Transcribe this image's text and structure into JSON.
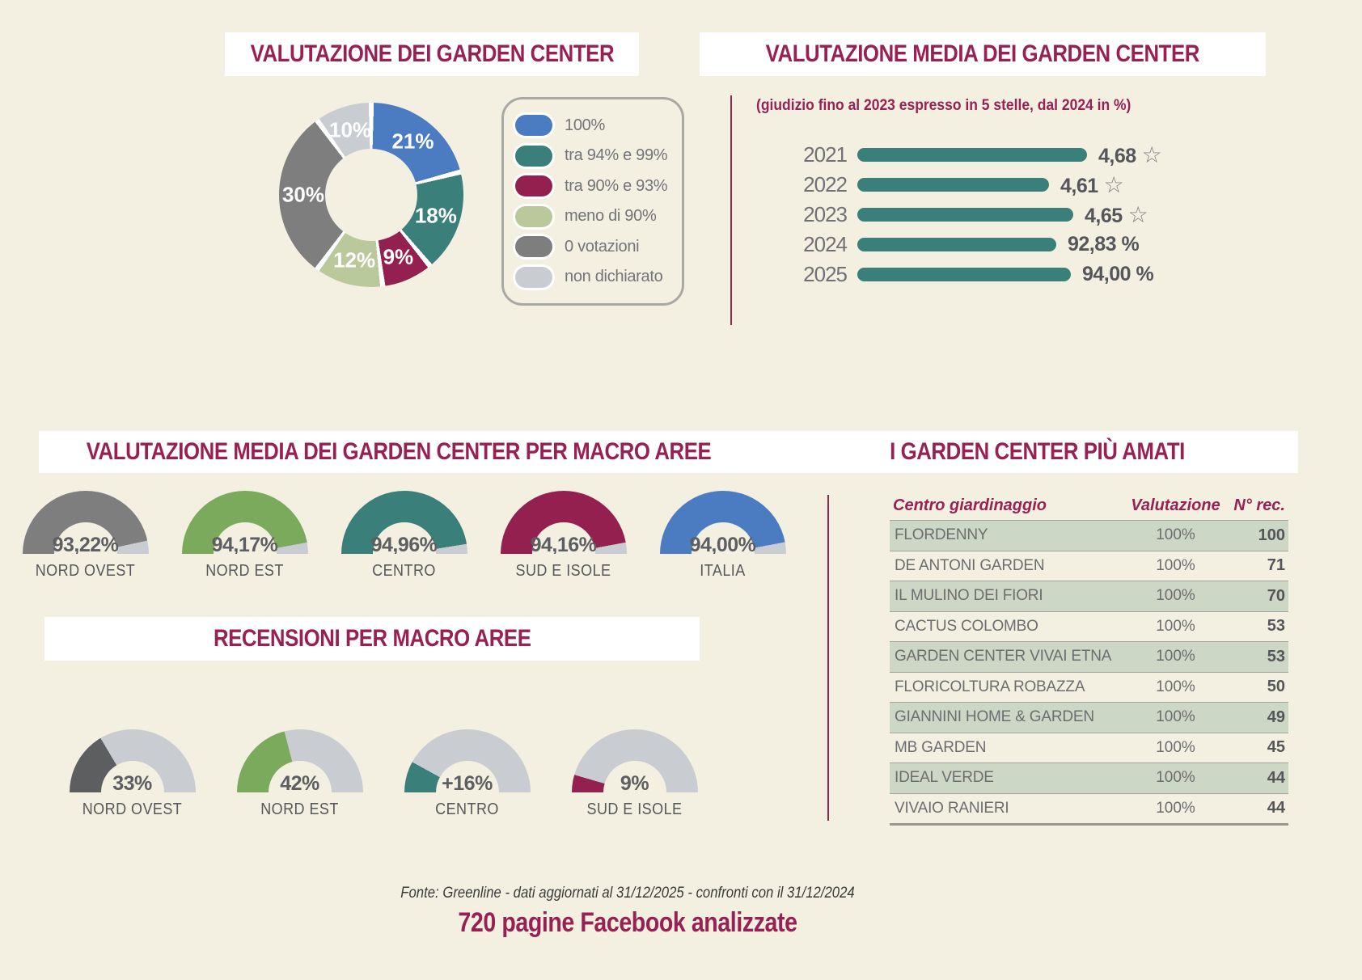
{
  "colors": {
    "background": "#f3f0e2",
    "title_band": "#ffffff",
    "accent_maroon": "#982153",
    "divider_maroon": "#8e2b52",
    "bar_teal": "#3a7f79",
    "blue": "#4b7cc2",
    "green": "#7baa5d",
    "light_green": "#bac99c",
    "mid_gray": "#7f7e7e",
    "rest_light_gray": "#c9ccd1",
    "table_row_green": "#cdd7c5",
    "text_gray": "#6c6d6f",
    "value_gray": "#5d5e61"
  },
  "chart_data": [
    {
      "id": "valutazione_donut",
      "type": "donut",
      "title": "VALUTAZIONE DEI GARDEN CENTER",
      "legend_position": "right",
      "segments": [
        {
          "label": "100%",
          "value": 21,
          "text": "21%",
          "color": "#4b7cc2"
        },
        {
          "label": "tra 94% e 99%",
          "value": 18,
          "text": "18%",
          "color": "#3a7f79"
        },
        {
          "label": "tra 90% e 93%",
          "value": 9,
          "text": "9%",
          "color": "#93204f"
        },
        {
          "label": "meno di 90%",
          "value": 12,
          "text": "12%",
          "color": "#bac99c"
        },
        {
          "label": "0 votazioni",
          "value": 30,
          "text": "30%",
          "color": "#7f7e7e"
        },
        {
          "label": "non dichiarato",
          "value": 10,
          "text": "10%",
          "color": "#c9cdd2"
        }
      ]
    },
    {
      "id": "valutazione_media",
      "type": "bar",
      "orientation": "horizontal",
      "title": "VALUTAZIONE MEDIA DEI GARDEN CENTER",
      "subtitle": "(giudizio fino al 2023 espresso in 5 stelle, dal 2024 in %)",
      "bar_color": "#3a7f79",
      "rows": [
        {
          "year": "2021",
          "value": 4.68,
          "display": "4,68",
          "star": true,
          "bar_fraction": 1.0
        },
        {
          "year": "2022",
          "value": 4.61,
          "display": "4,61",
          "star": true,
          "bar_fraction": 0.835
        },
        {
          "year": "2023",
          "value": 4.65,
          "display": "4,65",
          "star": true,
          "bar_fraction": 0.94
        },
        {
          "year": "2024",
          "value": 92.83,
          "display": "92,83 %",
          "star": false,
          "bar_fraction": 0.865
        },
        {
          "year": "2025",
          "value": 94.0,
          "display": "94,00 %",
          "star": false,
          "bar_fraction": 0.93
        }
      ]
    },
    {
      "id": "media_macro_aree",
      "type": "gauge",
      "title": "VALUTAZIONE MEDIA DEI GARDEN CENTER PER MACRO AREE",
      "max": 100,
      "rest_color": "#c9ccd1",
      "items": [
        {
          "label": "NORD OVEST",
          "value": 93.22,
          "text": "93,22%",
          "color": "#7f7e7e"
        },
        {
          "label": "NORD EST",
          "value": 94.17,
          "text": "94,17%",
          "color": "#7baa5d"
        },
        {
          "label": "CENTRO",
          "value": 94.96,
          "text": "94,96%",
          "color": "#3a7f79"
        },
        {
          "label": "SUD E ISOLE",
          "value": 94.16,
          "text": "94,16%",
          "color": "#93204f"
        },
        {
          "label": "ITALIA",
          "value": 94.0,
          "text": "94,00%",
          "color": "#4b7cc2"
        }
      ]
    },
    {
      "id": "recensioni_macro_aree",
      "type": "gauge",
      "title": "RECENSIONI PER MACRO AREE",
      "max": 100,
      "rest_color": "#c9ccd1",
      "items": [
        {
          "label": "NORD OVEST",
          "value": 33,
          "text": "33%",
          "color": "#5d5e60"
        },
        {
          "label": "NORD EST",
          "value": 42,
          "text": "42%",
          "color": "#7baa5d"
        },
        {
          "label": "CENTRO",
          "value": 16,
          "text": "+16%",
          "color": "#3a7f79"
        },
        {
          "label": "SUD E ISOLE",
          "value": 9,
          "text": "9%",
          "color": "#93204f"
        }
      ]
    },
    {
      "id": "garden_center_piu_amati",
      "type": "table",
      "title": "I GARDEN CENTER PIÙ AMATI",
      "columns": [
        "Centro giardinaggio",
        "Valutazione",
        "N° rec."
      ],
      "rows": [
        [
          "FLORDENNY",
          "100%",
          "100"
        ],
        [
          "DE ANTONI GARDEN",
          "100%",
          "71"
        ],
        [
          "IL MULINO DEI FIORI",
          "100%",
          "70"
        ],
        [
          "CACTUS COLOMBO",
          "100%",
          "53"
        ],
        [
          "GARDEN CENTER VIVAI ETNA",
          "100%",
          "53"
        ],
        [
          "FLORICOLTURA ROBAZZA",
          "100%",
          "50"
        ],
        [
          "GIANNINI HOME & GARDEN",
          "100%",
          "49"
        ],
        [
          "MB GARDEN",
          "100%",
          "45"
        ],
        [
          "IDEAL VERDE",
          "100%",
          "44"
        ],
        [
          "VIVAIO RANIERI",
          "100%",
          "44"
        ]
      ]
    }
  ],
  "footer": {
    "source": "Fonte: Greenline - dati aggiornati al 31/12/2025 - confronti con il 31/12/2024",
    "headline": "720 pagine Facebook analizzate"
  }
}
